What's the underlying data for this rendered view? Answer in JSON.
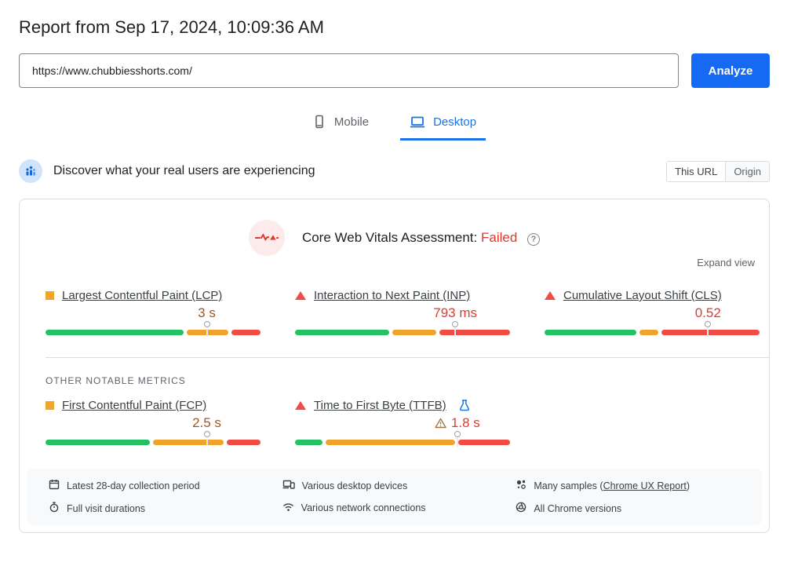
{
  "report": {
    "title": "Report from Sep 17, 2024, 10:09:36 AM"
  },
  "url_bar": {
    "value": "https://www.chubbiesshorts.com/",
    "analyze_label": "Analyze"
  },
  "tabs": [
    {
      "label": "Mobile",
      "active": false,
      "icon": "mobile-icon"
    },
    {
      "label": "Desktop",
      "active": true,
      "icon": "desktop-icon"
    }
  ],
  "field_data": {
    "heading": "Discover what your real users are experiencing",
    "scope_toggle": {
      "options": [
        "This URL",
        "Origin"
      ],
      "selected": "This URL"
    },
    "assessment": {
      "title": "Core Web Vitals Assessment:",
      "result": "Failed",
      "expand_label": "Expand view"
    },
    "core_metrics": [
      {
        "name": "Largest Contentful Paint (LCP)",
        "value": "3 s",
        "status": "ni",
        "segments": [
          66,
          20,
          14
        ],
        "marker": 75
      },
      {
        "name": "Interaction to Next Paint (INP)",
        "value": "793 ms",
        "status": "poor",
        "segments": [
          45,
          21,
          34
        ],
        "marker": 74.5
      },
      {
        "name": "Cumulative Layout Shift (CLS)",
        "value": "0.52",
        "status": "poor",
        "segments": [
          44,
          9,
          47
        ],
        "marker": 76
      }
    ],
    "other_metrics_label": "OTHER NOTABLE METRICS",
    "other_metrics": [
      {
        "name": "First Contentful Paint (FCP)",
        "value": "2.5 s",
        "status": "ni",
        "segments": [
          50,
          34,
          16
        ],
        "marker": 75
      },
      {
        "name": "Time to First Byte (TTFB)",
        "value": "1.8 s",
        "status": "poor",
        "experimental": true,
        "warning": true,
        "segments": [
          13,
          62,
          25
        ],
        "marker": 75.5
      }
    ],
    "footer": {
      "columns": [
        {
          "items": [
            {
              "icon": "calendar-icon",
              "text": "Latest 28-day collection period"
            },
            {
              "icon": "stopwatch-icon",
              "text": "Full visit durations"
            }
          ]
        },
        {
          "items": [
            {
              "icon": "devices-icon",
              "text": "Various desktop devices"
            },
            {
              "icon": "network-icon",
              "text": "Various network connections"
            }
          ]
        },
        {
          "items": [
            {
              "icon": "samples-icon",
              "text_prefix": "Many samples (",
              "link_text": "Chrome UX Report",
              "text_suffix": ")"
            },
            {
              "icon": "chrome-icon",
              "text": "All Chrome versions"
            }
          ]
        }
      ]
    }
  },
  "colors": {
    "good": "#23c162",
    "needs_improvement_bar": "#efa32a",
    "poor_bar": "#f04c43",
    "needs_improvement_text": "#a3571c",
    "poor_text": "#df3c30",
    "accent_blue": "#1a73e8",
    "analyze_button_blue": "#1669f2",
    "failed_text": "#e0382d"
  }
}
